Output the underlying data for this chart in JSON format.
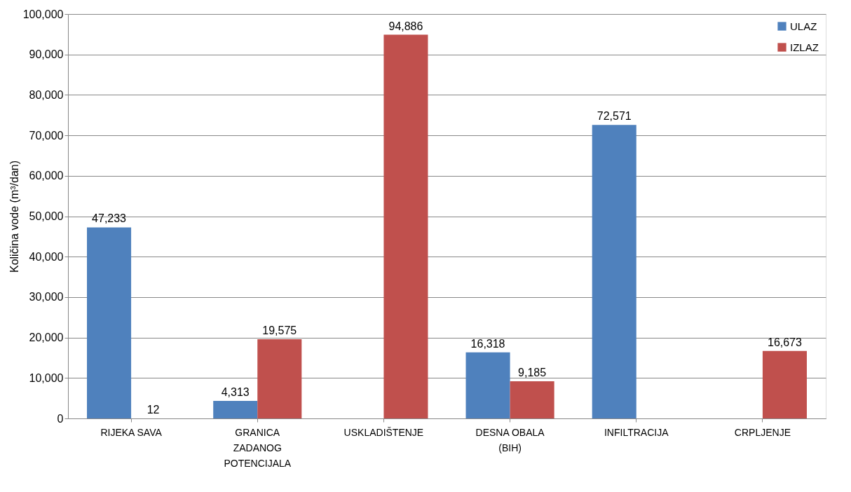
{
  "chart_data": {
    "type": "bar",
    "ylabel": "Količina vode (m³/dan)",
    "categories": [
      "RIJEKA SAVA",
      "GRANICA ZADANOG POTENCIJALA",
      "USKLADIŠTENJE",
      "DESNA OBALA (BIH)",
      "INFILTRACIJA",
      "CRPLJENJE"
    ],
    "series": [
      {
        "name": "ULAZ",
        "color": "#4f81bd",
        "values": [
          47233,
          4313,
          null,
          16318,
          72571,
          null
        ],
        "value_labels": [
          "47,233",
          "4,313",
          null,
          "16,318",
          "72,571",
          null
        ]
      },
      {
        "name": "IZLAZ",
        "color": "#c0504d",
        "values": [
          12,
          19575,
          94886,
          9185,
          null,
          16673
        ],
        "value_labels": [
          "12",
          "19,575",
          "94,886",
          "9,185",
          null,
          "16,673"
        ]
      }
    ],
    "ylim": [
      0,
      100000
    ],
    "yticks": [
      0,
      {
        "value": 10000,
        "label": "10,000"
      },
      {
        "value": 20000,
        "label": "20,000"
      },
      {
        "value": 30000,
        "label": "30,000"
      },
      {
        "value": 40000,
        "label": "40,000"
      },
      {
        "value": 50000,
        "label": "50,000"
      },
      {
        "value": 60000,
        "label": "60,000"
      },
      {
        "value": 70000,
        "label": "70,000"
      },
      {
        "value": 80000,
        "label": "80,000"
      },
      {
        "value": 90000,
        "label": "90,000"
      },
      {
        "value": 100000,
        "label": "100,000"
      }
    ],
    "grid": "y",
    "legend": "top right"
  }
}
